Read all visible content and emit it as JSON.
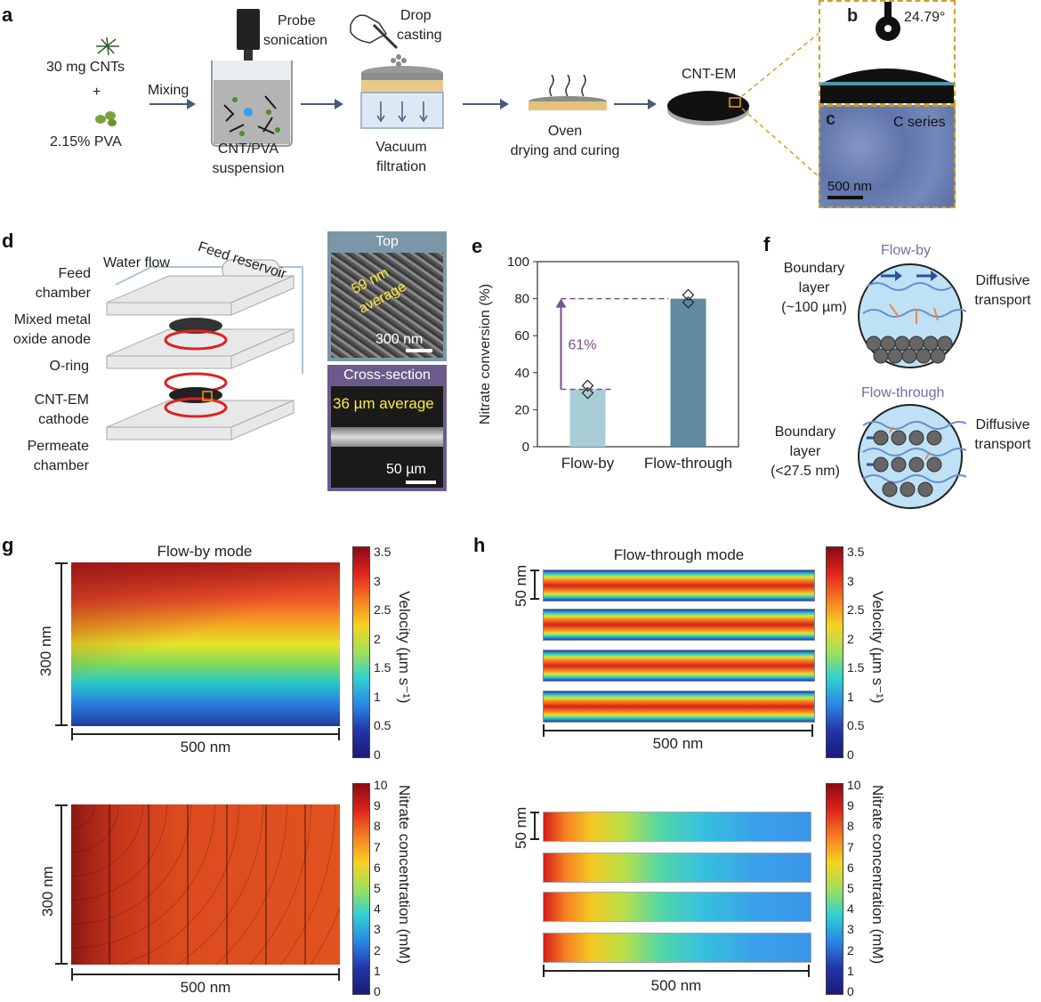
{
  "panels": {
    "a": "a",
    "b": "b",
    "c": "c",
    "d": "d",
    "e": "e",
    "f": "f",
    "g": "g",
    "h": "h"
  },
  "panel_a": {
    "cnts": "30 mg CNTs",
    "plus": "+",
    "pva": "2.15% PVA",
    "mixing": "Mixing",
    "probe1": "Probe",
    "probe2": "sonication",
    "suspension1": "CNT/PVA",
    "suspension2": "suspension",
    "drop1": "Drop",
    "drop2": "casting",
    "vacuum1": "Vacuum",
    "vacuum2": "filtration",
    "oven1": "Oven",
    "oven2": "drying and curing",
    "cntem": "CNT-EM"
  },
  "panel_b": {
    "angle": "24.79°"
  },
  "panel_c": {
    "series": "C series",
    "scale": "500 nm"
  },
  "panel_d": {
    "water_flow": "Water flow",
    "feed_reservoir": "Feed reservoir",
    "feed_chamber1": "Feed",
    "feed_chamber2": "chamber",
    "anode1": "Mixed metal",
    "anode2": "oxide anode",
    "oring": "O-ring",
    "cathode1": "CNT-EM",
    "cathode2": "cathode",
    "permeate1": "Permeate",
    "permeate2": "chamber",
    "top": "Top",
    "avg59a": "59 nm",
    "avg59b": "average",
    "scale300": "300 nm",
    "cross": "Cross-section",
    "avg36": "36 µm average",
    "scale50": "50 µm"
  },
  "panel_e": {
    "chart_data": {
      "type": "bar",
      "categories": [
        "Flow-by",
        "Flow-through"
      ],
      "values": [
        31,
        80
      ],
      "points": [
        [
          33,
          29
        ],
        [
          82,
          78
        ]
      ],
      "ylabel": "Nitrate conversion (%)",
      "ylim": [
        0,
        100
      ],
      "yticks": [
        "0",
        "20",
        "40",
        "60",
        "80",
        "100"
      ],
      "annotation": "61%",
      "colors": [
        "#a9cdd6",
        "#5f8aa0"
      ]
    }
  },
  "panel_f": {
    "flowby": "Flow-by",
    "flowthrough": "Flow-through",
    "bl1a": "Boundary",
    "bl1b": "layer",
    "bl1c": "(~100 µm)",
    "dt1a": "Diffusive",
    "dt1b": "transport",
    "bl2a": "Boundary",
    "bl2b": "layer",
    "bl2c": "(<27.5 nm)",
    "dt2a": "Diffusive",
    "dt2b": "transport"
  },
  "panel_g": {
    "title": "Flow-by mode",
    "y_extent": "300 nm",
    "x_extent": "500 nm",
    "y_extent2": "300 nm",
    "x_extent2": "500 nm"
  },
  "panel_h": {
    "title": "Flow-through mode",
    "y_extent": "50 nm",
    "x_extent": "500 nm",
    "y_extent2": "50 nm",
    "x_extent2": "500 nm"
  },
  "colorbar_velocity": {
    "label": "Velocity (µm s⁻¹)",
    "ticks": [
      "3.5",
      "3",
      "2.5",
      "2",
      "1.5",
      "1",
      "0.5",
      "0"
    ]
  },
  "colorbar_nitrate": {
    "label": "Nitrate concentration (mM)",
    "ticks": [
      "10",
      "9",
      "8",
      "7",
      "6",
      "5",
      "4",
      "3",
      "2",
      "1",
      "0"
    ]
  },
  "colors": {
    "accent_purple": "#7a4f8a",
    "inset_dash": "#c9a227",
    "arrow": "#4a5a78",
    "sem_top_header": "#7a97a8",
    "sem_cross_header": "#6b5b8c"
  }
}
